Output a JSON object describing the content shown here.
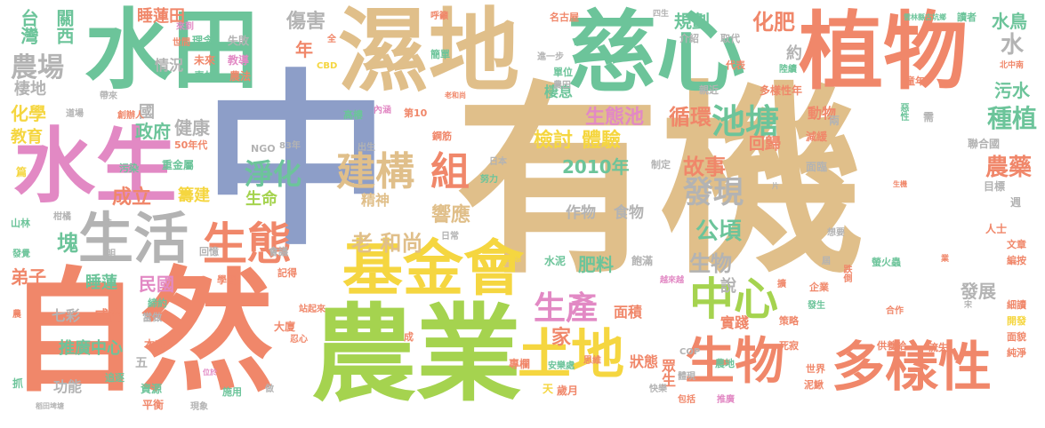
{
  "colors": {
    "tan": "#e0bf8a",
    "teal": "#6cc49a",
    "orange": "#f0876a",
    "periwinkle": "#8d9ec8",
    "green": "#a5d34f",
    "pink": "#e289c4",
    "yellow": "#f5d640",
    "gray": "#b3b3b3",
    "background": "#ffffff"
  },
  "words": [
    {
      "text": "有機",
      "color": "tan"
    },
    {
      "text": "中",
      "color": "periwinkle"
    },
    {
      "text": "自然",
      "color": "orange"
    },
    {
      "text": "農業",
      "color": "green"
    },
    {
      "text": "水田",
      "color": "teal"
    },
    {
      "text": "濕地",
      "color": "tan"
    },
    {
      "text": "慈心",
      "color": "teal"
    },
    {
      "text": "植物",
      "color": "orange"
    },
    {
      "text": "水生",
      "color": "pink"
    },
    {
      "text": "生活",
      "color": "gray"
    },
    {
      "text": "基金會",
      "color": "yellow"
    },
    {
      "text": "土地",
      "color": "yellow"
    },
    {
      "text": "生物",
      "color": "orange"
    },
    {
      "text": "多樣性",
      "color": "orange"
    },
    {
      "text": "生態",
      "color": "orange"
    },
    {
      "text": "中心",
      "color": "green"
    },
    {
      "text": "生產",
      "color": "pink"
    },
    {
      "text": "建構",
      "color": "tan"
    },
    {
      "text": "淨化",
      "color": "teal"
    },
    {
      "text": "組",
      "color": "orange"
    },
    {
      "text": "發現",
      "color": "gray"
    },
    {
      "text": "池塘",
      "color": "teal"
    },
    {
      "text": "種植",
      "color": "teal"
    },
    {
      "text": "農場",
      "color": "gray"
    },
    {
      "text": "老 和尚",
      "color": "tan"
    },
    {
      "text": "2010年",
      "color": "teal"
    },
    {
      "text": "作物",
      "color": "gray"
    },
    {
      "text": "食物",
      "color": "gray"
    },
    {
      "text": "肥料",
      "color": "teal"
    },
    {
      "text": "生物",
      "color": "gray"
    },
    {
      "text": "公頃",
      "color": "teal"
    },
    {
      "text": "故事",
      "color": "orange"
    },
    {
      "text": "農藥",
      "color": "orange"
    },
    {
      "text": "檢討",
      "color": "yellow"
    },
    {
      "text": "體驗",
      "color": "yellow"
    },
    {
      "text": "生態池",
      "color": "pink"
    },
    {
      "text": "循環",
      "color": "orange"
    },
    {
      "text": "化肥",
      "color": "orange"
    },
    {
      "text": "水鳥",
      "color": "teal"
    },
    {
      "text": "水",
      "color": "gray"
    },
    {
      "text": "污水",
      "color": "teal"
    },
    {
      "text": "台灣",
      "color": "teal"
    },
    {
      "text": "關西",
      "color": "teal"
    },
    {
      "text": "睡蓮田",
      "color": "orange"
    },
    {
      "text": "傷害",
      "color": "gray"
    },
    {
      "text": "規劃",
      "color": "teal"
    },
    {
      "text": "年",
      "color": "orange"
    },
    {
      "text": "化學",
      "color": "yellow"
    },
    {
      "text": "教育",
      "color": "yellow"
    },
    {
      "text": "政府",
      "color": "teal"
    },
    {
      "text": "健康",
      "color": "gray"
    },
    {
      "text": "成立",
      "color": "orange"
    },
    {
      "text": "籌建",
      "color": "yellow"
    },
    {
      "text": "塊",
      "color": "teal"
    },
    {
      "text": "弟子",
      "color": "orange"
    },
    {
      "text": "睡蓮",
      "color": "teal"
    },
    {
      "text": "民國",
      "color": "pink"
    },
    {
      "text": "七彩",
      "color": "gray"
    },
    {
      "text": "威脅",
      "color": "orange"
    },
    {
      "text": "推廣中心",
      "color": "teal"
    },
    {
      "text": "功能",
      "color": "gray"
    },
    {
      "text": "狀態",
      "color": "orange"
    },
    {
      "text": "家",
      "color": "orange"
    },
    {
      "text": "面積",
      "color": "orange"
    },
    {
      "text": "響應",
      "color": "tan"
    },
    {
      "text": "發展",
      "color": "gray"
    },
    {
      "text": "實踐",
      "color": "orange"
    },
    {
      "text": "說",
      "color": "gray"
    },
    {
      "text": "眾生",
      "color": "orange"
    },
    {
      "text": "生命",
      "color": "green"
    },
    {
      "text": "精神",
      "color": "tan"
    },
    {
      "text": "情況",
      "color": "gray"
    },
    {
      "text": "棲息",
      "color": "teal"
    },
    {
      "text": "動物",
      "color": "orange"
    },
    {
      "text": "回歸",
      "color": "orange"
    },
    {
      "text": "約",
      "color": "gray"
    },
    {
      "text": "國",
      "color": "gray"
    },
    {
      "text": "棲地",
      "color": "gray"
    },
    {
      "text": "理念",
      "color": "teal"
    },
    {
      "text": "失敗",
      "color": "gray"
    },
    {
      "text": "未來",
      "color": "orange"
    },
    {
      "text": "教導",
      "color": "pink"
    },
    {
      "text": "青蛙",
      "color": "teal"
    },
    {
      "text": "農法",
      "color": "orange"
    },
    {
      "text": "世間",
      "color": "orange"
    },
    {
      "text": "減緩",
      "color": "orange"
    },
    {
      "text": "兩",
      "color": "gray"
    },
    {
      "text": "惡性",
      "color": "teal"
    },
    {
      "text": "需",
      "color": "gray"
    },
    {
      "text": "聯合國",
      "color": "gray"
    },
    {
      "text": "目標",
      "color": "gray"
    },
    {
      "text": "週",
      "color": "gray"
    },
    {
      "text": "面臨",
      "color": "gray"
    },
    {
      "text": "人士",
      "color": "orange"
    },
    {
      "text": "文章",
      "color": "orange"
    },
    {
      "text": "編按",
      "color": "orange"
    },
    {
      "text": "細讀",
      "color": "orange"
    },
    {
      "text": "開發",
      "color": "yellow"
    },
    {
      "text": "面貌",
      "color": "orange"
    },
    {
      "text": "純淨",
      "color": "orange"
    },
    {
      "text": "流失",
      "color": "orange"
    },
    {
      "text": "死寂",
      "color": "orange"
    },
    {
      "text": "世界",
      "color": "orange"
    },
    {
      "text": "泥鰍",
      "color": "orange"
    },
    {
      "text": "螢火蟲",
      "color": "teal"
    },
    {
      "text": "企業",
      "color": "orange"
    },
    {
      "text": "合作",
      "color": "orange"
    },
    {
      "text": "策略",
      "color": "orange"
    },
    {
      "text": "供養給",
      "color": "orange"
    },
    {
      "text": "農地",
      "color": "teal"
    },
    {
      "text": "體現",
      "color": "gray"
    },
    {
      "text": "快樂",
      "color": "gray"
    },
    {
      "text": "包括",
      "color": "orange"
    },
    {
      "text": "推廣",
      "color": "pink"
    },
    {
      "text": "COP",
      "color": "gray"
    },
    {
      "text": "水泥",
      "color": "teal"
    },
    {
      "text": "飽滿",
      "color": "gray"
    },
    {
      "text": "歲月",
      "color": "orange"
    },
    {
      "text": "專欄",
      "color": "orange"
    },
    {
      "text": "安樂處",
      "color": "teal"
    },
    {
      "text": "思維",
      "color": "orange"
    },
    {
      "text": "天",
      "color": "yellow"
    },
    {
      "text": "高樓",
      "color": "teal"
    },
    {
      "text": "內涵",
      "color": "pink"
    },
    {
      "text": "第10",
      "color": "orange"
    },
    {
      "text": "鋼筋",
      "color": "orange"
    },
    {
      "text": "出生",
      "color": "gray"
    },
    {
      "text": "NGO",
      "color": "gray"
    },
    {
      "text": "83年",
      "color": "gray"
    },
    {
      "text": "日本",
      "color": "gray"
    },
    {
      "text": "努力",
      "color": "teal"
    },
    {
      "text": "制定",
      "color": "gray"
    },
    {
      "text": "日常",
      "color": "gray"
    },
    {
      "text": "大廈",
      "color": "orange"
    },
    {
      "text": "忍心",
      "color": "orange"
    },
    {
      "text": "站起來",
      "color": "orange"
    },
    {
      "text": "記得",
      "color": "orange"
    },
    {
      "text": "學習",
      "color": "orange"
    },
    {
      "text": "會議",
      "color": "gray"
    },
    {
      "text": "回憶",
      "color": "gray"
    },
    {
      "text": "重金屬",
      "color": "teal"
    },
    {
      "text": "50年代",
      "color": "orange"
    },
    {
      "text": "創辦人",
      "color": "orange"
    },
    {
      "text": "道場",
      "color": "gray"
    },
    {
      "text": "帶來",
      "color": "gray"
    },
    {
      "text": "篇",
      "color": "yellow"
    },
    {
      "text": "污染",
      "color": "teal"
    },
    {
      "text": "山林",
      "color": "teal"
    },
    {
      "text": "柑橘",
      "color": "gray"
    },
    {
      "text": "時",
      "color": "gray"
    },
    {
      "text": "明",
      "color": "gray"
    },
    {
      "text": "發覺",
      "color": "teal"
    },
    {
      "text": "締約",
      "color": "teal"
    },
    {
      "text": "當做",
      "color": "gray"
    },
    {
      "text": "本來",
      "color": "orange"
    },
    {
      "text": "五",
      "color": "gray"
    },
    {
      "text": "資源",
      "color": "teal"
    },
    {
      "text": "平衡",
      "color": "orange"
    },
    {
      "text": "現象",
      "color": "gray"
    },
    {
      "text": "追逐",
      "color": "teal"
    },
    {
      "text": "施用",
      "color": "teal"
    },
    {
      "text": "做",
      "color": "gray"
    },
    {
      "text": "抓",
      "color": "teal"
    },
    {
      "text": "稻田埤塘",
      "color": "gray"
    },
    {
      "text": "位於",
      "color": "pink"
    },
    {
      "text": "成",
      "color": "orange"
    },
    {
      "text": "CBD",
      "color": "yellow"
    },
    {
      "text": "全",
      "color": "orange"
    },
    {
      "text": "來到",
      "color": "pink"
    },
    {
      "text": "呼籲",
      "color": "orange"
    },
    {
      "text": "簡單",
      "color": "teal"
    },
    {
      "text": "名古屋",
      "color": "orange"
    },
    {
      "text": "四生",
      "color": "gray"
    },
    {
      "text": "雲林縣古坑鄉",
      "color": "teal"
    },
    {
      "text": "讀者",
      "color": "teal"
    },
    {
      "text": "介紹",
      "color": "gray"
    },
    {
      "text": "進一步",
      "color": "gray"
    },
    {
      "text": "單位",
      "color": "teal"
    },
    {
      "text": "農田",
      "color": "gray"
    },
    {
      "text": "取代",
      "color": "gray"
    },
    {
      "text": "代表",
      "color": "orange"
    },
    {
      "text": "陸續",
      "color": "teal"
    },
    {
      "text": "北中南",
      "color": "orange"
    },
    {
      "text": "親近",
      "color": "gray"
    },
    {
      "text": "童年",
      "color": "orange"
    },
    {
      "text": "多樣性年",
      "color": "orange"
    },
    {
      "text": "生機",
      "color": "orange"
    },
    {
      "text": "想要",
      "color": "gray"
    },
    {
      "text": "越來越",
      "color": "pink"
    },
    {
      "text": "屆",
      "color": "gray"
    },
    {
      "text": "跌倒",
      "color": "orange"
    },
    {
      "text": "發生",
      "color": "teal"
    },
    {
      "text": "宋",
      "color": "gray"
    },
    {
      "text": "業",
      "color": "orange"
    },
    {
      "text": "擴",
      "color": "orange"
    },
    {
      "text": "片",
      "color": "gray"
    },
    {
      "text": "農",
      "color": "orange"
    },
    {
      "text": "生態",
      "color": "yellow"
    },
    {
      "text": "老和尚",
      "color": "orange"
    }
  ]
}
